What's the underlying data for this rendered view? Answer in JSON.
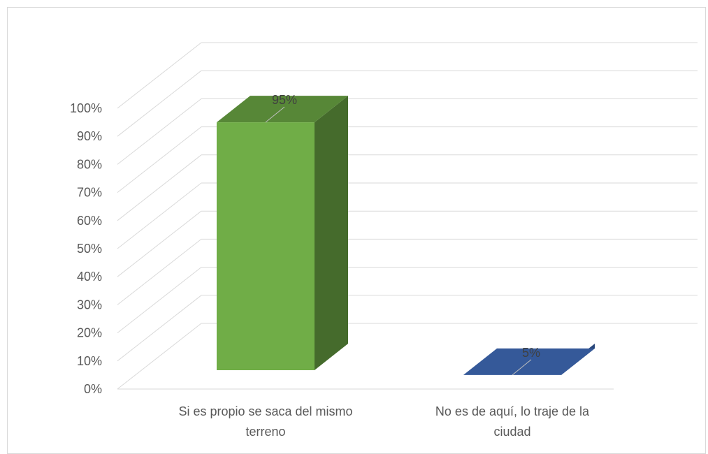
{
  "chart_data": {
    "type": "bar",
    "style": "3d-column",
    "categories": [
      [
        "Si es propio se saca del mismo",
        "terreno"
      ],
      [
        "No es de aquí, lo traje de la",
        "ciudad"
      ]
    ],
    "values": [
      95,
      5
    ],
    "data_labels": [
      "95%",
      "5%"
    ],
    "colors": [
      "#70ad47",
      "#4472c4"
    ],
    "ylim": [
      0,
      100
    ],
    "y_ticks": [
      "0%",
      "10%",
      "20%",
      "30%",
      "40%",
      "50%",
      "60%",
      "70%",
      "80%",
      "90%",
      "100%"
    ],
    "grid": true,
    "legend": "none"
  }
}
